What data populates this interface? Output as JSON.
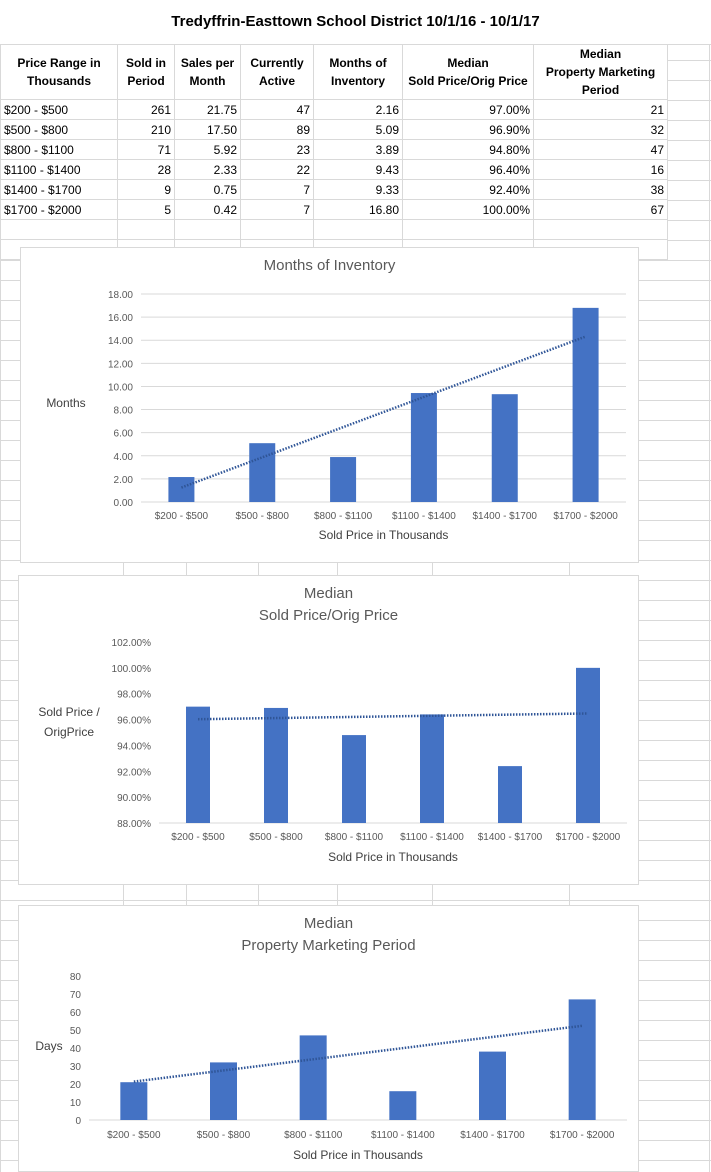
{
  "title": "Tredyffrin-Easttown School District 10/1/16 - 10/1/17",
  "table": {
    "headers": [
      [
        "Price Range in",
        "Thousands"
      ],
      [
        "Sold in",
        "Period"
      ],
      [
        "Sales per",
        "Month"
      ],
      [
        "Currently",
        "Active"
      ],
      [
        "Months of",
        "Inventory"
      ],
      [
        "Median",
        "Sold Price/Orig Price"
      ],
      [
        "Median",
        "Property Marketing",
        "Period"
      ]
    ],
    "rows": [
      [
        "$200 - $500",
        "261",
        "21.75",
        "47",
        "2.16",
        "97.00%",
        "21"
      ],
      [
        "$500 - $800",
        "210",
        "17.50",
        "89",
        "5.09",
        "96.90%",
        "32"
      ],
      [
        "$800 - $1100",
        "71",
        "5.92",
        "23",
        "3.89",
        "94.80%",
        "47"
      ],
      [
        "$1100 - $1400",
        "28",
        "2.33",
        "22",
        "9.43",
        "96.40%",
        "16"
      ],
      [
        "$1400 - $1700",
        "9",
        "0.75",
        "7",
        "9.33",
        "92.40%",
        "38"
      ],
      [
        "$1700 - $2000",
        "5",
        "0.42",
        "7",
        "16.80",
        "100.00%",
        "67"
      ]
    ]
  },
  "colors": {
    "bar": "#4472c4",
    "trend": "#2f5597",
    "grid": "#d9d9d9",
    "text": "#595959"
  },
  "chart_data": [
    {
      "type": "bar",
      "title": [
        "Months of Inventory"
      ],
      "ylabel": [
        "Months"
      ],
      "xlabel": "Sold Price in Thousands",
      "categories": [
        "$200 - $500",
        "$500 - $800",
        "$800 - $1100",
        "$1100 - $1400",
        "$1400 - $1700",
        "$1700 - $2000"
      ],
      "values": [
        2.16,
        5.09,
        3.89,
        9.43,
        9.33,
        16.8
      ],
      "ylim": [
        0,
        18
      ],
      "ystep": 2,
      "tick_format": "fixed2",
      "trendline": "linear",
      "grid": true
    },
    {
      "type": "bar",
      "title": [
        "Median",
        "Sold Price/Orig Price"
      ],
      "ylabel": [
        "Sold Price /",
        "OrigPrice"
      ],
      "xlabel": "Sold Price in  Thousands",
      "categories": [
        "$200 - $500",
        "$500 - $800",
        "$800 - $1100",
        "$1100 - $1400",
        "$1400 - $1700",
        "$1700 - $2000"
      ],
      "values": [
        97.0,
        96.9,
        94.8,
        96.4,
        92.4,
        100.0
      ],
      "ylim": [
        88,
        102
      ],
      "ystep": 2,
      "tick_format": "percent2",
      "trendline": "linear",
      "grid": false
    },
    {
      "type": "bar",
      "title": [
        "Median",
        "Property Marketing Period"
      ],
      "ylabel": [
        "Days"
      ],
      "xlabel": "Sold Price in Thousands",
      "categories": [
        "$200 - $500",
        "$500 - $800",
        "$800 - $1100",
        "$1100 - $1400",
        "$1400 - $1700",
        "$1700 - $2000"
      ],
      "values": [
        21,
        32,
        47,
        16,
        38,
        67
      ],
      "ylim": [
        0,
        80
      ],
      "ystep": 10,
      "tick_format": "int",
      "trendline": "linear",
      "grid": false
    }
  ]
}
